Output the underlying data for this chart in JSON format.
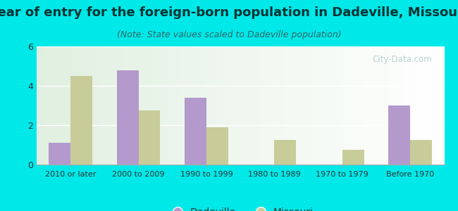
{
  "title": "Year of entry for the foreign-born population in Dadeville, Missouri",
  "subtitle": "(Note: State values scaled to Dadeville population)",
  "categories": [
    "2010 or later",
    "2000 to 2009",
    "1990 to 1999",
    "1980 to 1989",
    "1970 to 1979",
    "Before 1970"
  ],
  "dadeville": [
    1.1,
    4.8,
    3.4,
    0,
    0,
    3.0
  ],
  "missouri": [
    4.5,
    2.75,
    1.9,
    1.25,
    0.75,
    1.25
  ],
  "dadeville_color": "#b399cc",
  "missouri_color": "#c8cc99",
  "bg_color": "#00e8e8",
  "plot_bg": "#e8f4e8",
  "ylim": [
    0,
    6
  ],
  "yticks": [
    0,
    2,
    4,
    6
  ],
  "bar_width": 0.32,
  "title_fontsize": 13,
  "subtitle_fontsize": 9,
  "title_color": "#003333",
  "subtitle_color": "#336666",
  "legend_dadeville": "Dadeville",
  "legend_missouri": "Missouri",
  "watermark": "City-Data.com"
}
